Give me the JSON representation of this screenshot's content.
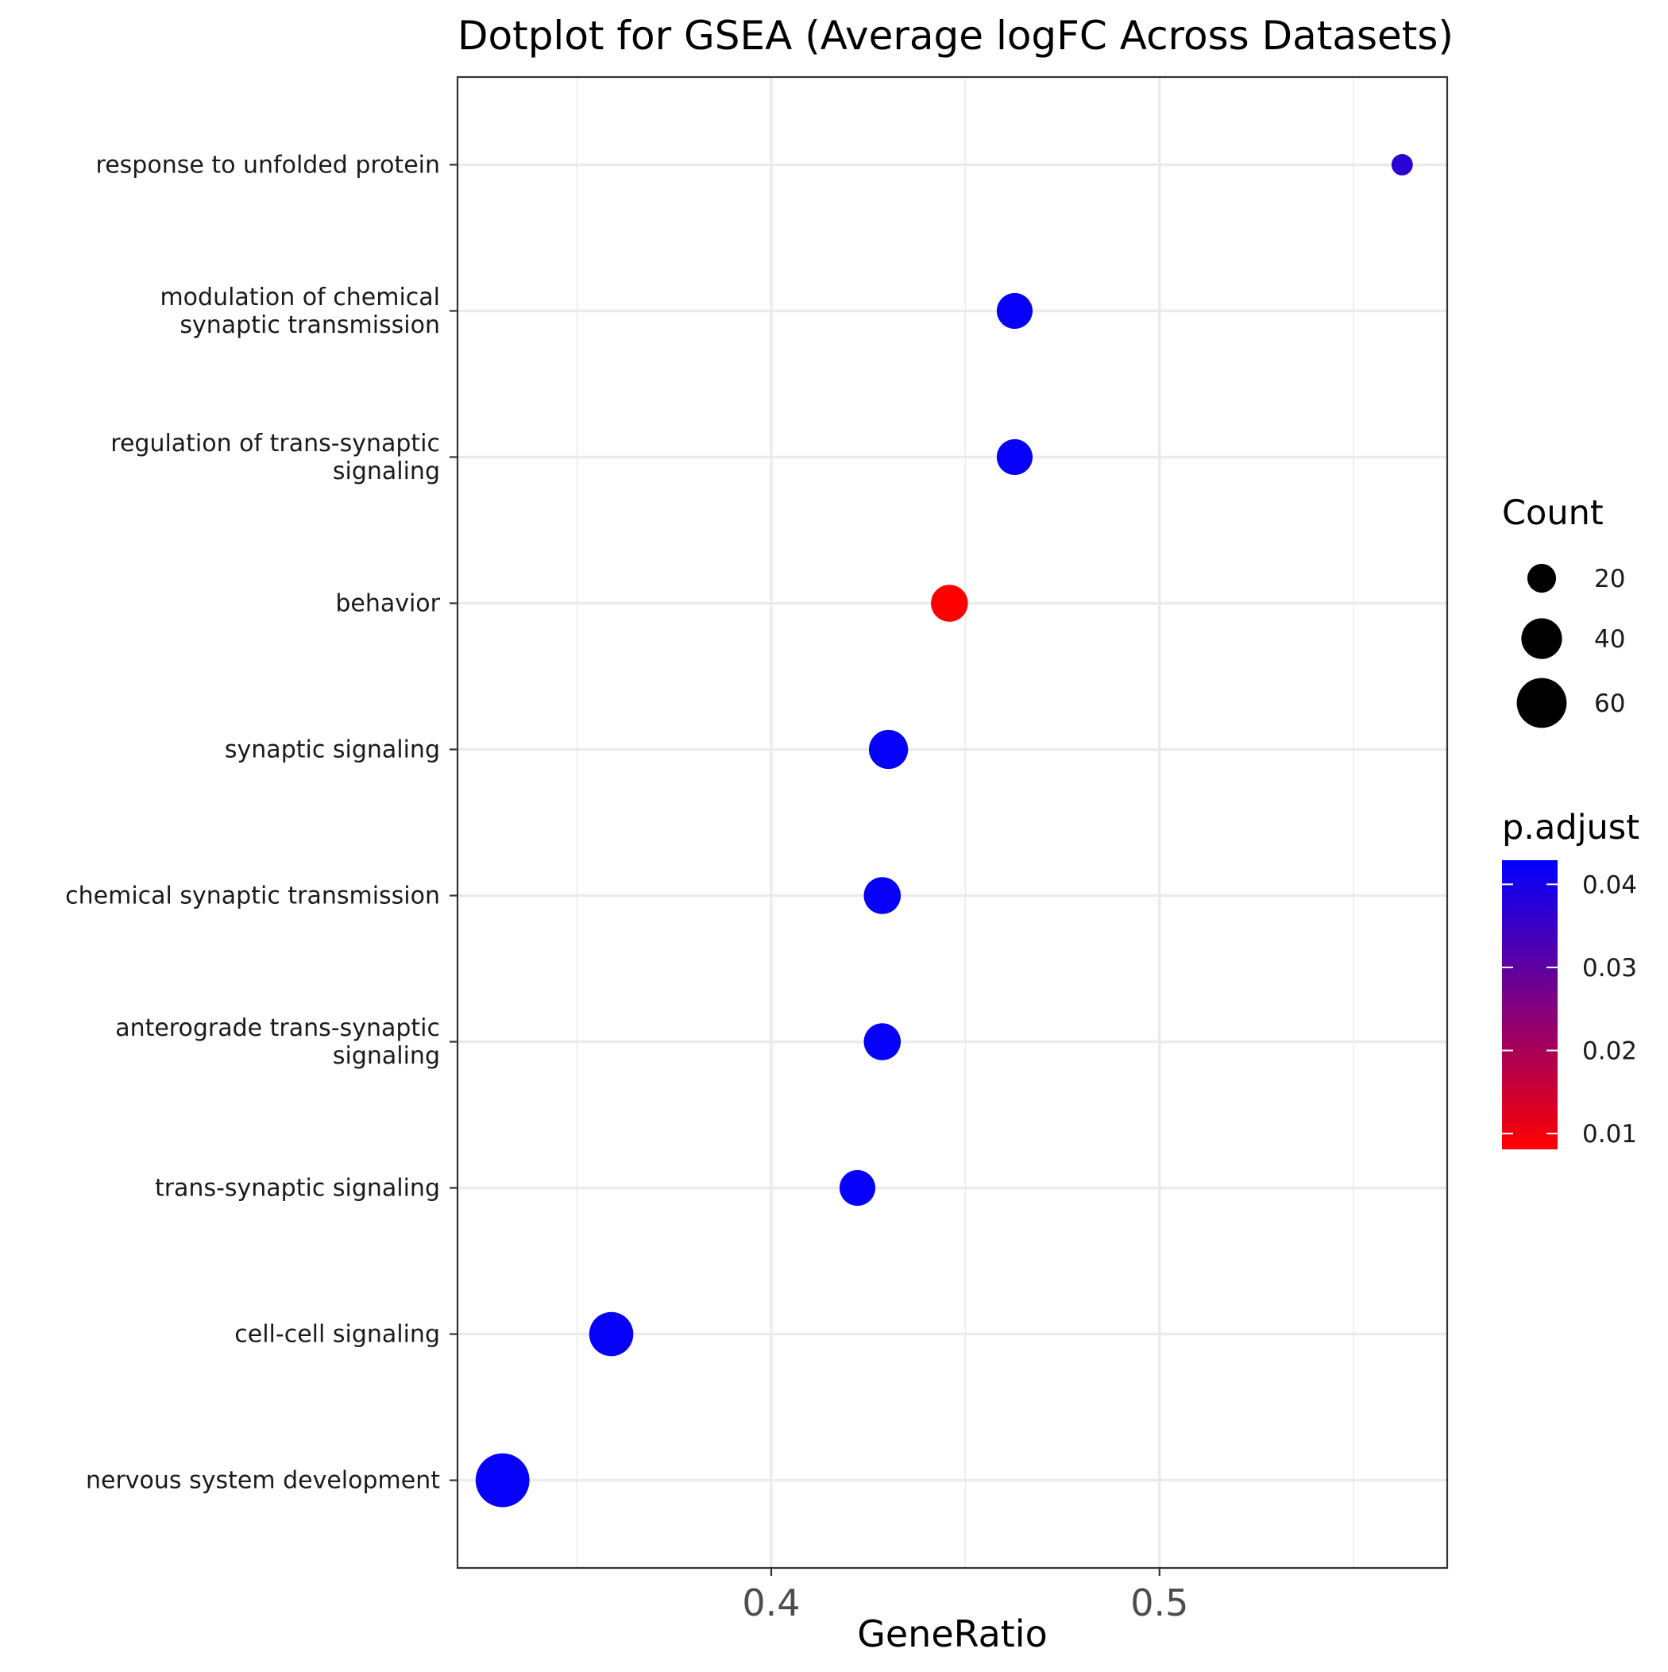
{
  "chart_data": {
    "type": "scatter",
    "title": "Dotplot for GSEA (Average logFC Across Datasets)",
    "xlabel": "GeneRatio",
    "ylabel": "",
    "xlim": [
      0.3192,
      0.5741
    ],
    "x_ticks": [
      0.4,
      0.5
    ],
    "x_tick_labels": [
      "0.4",
      "0.5"
    ],
    "grid": true,
    "categories": [
      "response to unfolded protein",
      "modulation of chemical synaptic transmission",
      "regulation of trans-synaptic signaling",
      "behavior",
      "synaptic signaling",
      "chemical synaptic transmission",
      "anterograde trans-synaptic signaling",
      "trans-synaptic signaling",
      "cell-cell signaling",
      "nervous system development"
    ],
    "category_labels": [
      [
        "response to unfolded protein"
      ],
      [
        "modulation of chemical",
        "synaptic transmission"
      ],
      [
        "regulation of trans-synaptic",
        "signaling"
      ],
      [
        "behavior"
      ],
      [
        "synaptic signaling"
      ],
      [
        "chemical synaptic transmission"
      ],
      [
        "anterograde trans-synaptic",
        "signaling"
      ],
      [
        "trans-synaptic signaling"
      ],
      [
        "cell-cell signaling"
      ],
      [
        "nervous system development"
      ]
    ],
    "points": [
      {
        "term": "response to unfolded protein",
        "gene_ratio": 0.5625,
        "count": 11,
        "p_adjust": 0.037
      },
      {
        "term": "modulation of chemical synaptic transmission",
        "gene_ratio": 0.4627,
        "count": 31,
        "p_adjust": 0.042
      },
      {
        "term": "regulation of trans-synaptic signaling",
        "gene_ratio": 0.4627,
        "count": 31,
        "p_adjust": 0.042
      },
      {
        "term": "behavior",
        "gene_ratio": 0.4459,
        "count": 33,
        "p_adjust": 0.008
      },
      {
        "term": "synaptic signaling",
        "gene_ratio": 0.4302,
        "count": 37,
        "p_adjust": 0.042
      },
      {
        "term": "chemical synaptic transmission",
        "gene_ratio": 0.4286,
        "count": 33,
        "p_adjust": 0.042
      },
      {
        "term": "anterograde trans-synaptic signaling",
        "gene_ratio": 0.4286,
        "count": 33,
        "p_adjust": 0.042
      },
      {
        "term": "trans-synaptic signaling",
        "gene_ratio": 0.4222,
        "count": 31,
        "p_adjust": 0.042
      },
      {
        "term": "cell-cell signaling",
        "gene_ratio": 0.3588,
        "count": 47,
        "p_adjust": 0.042
      },
      {
        "term": "nervous system development",
        "gene_ratio": 0.3308,
        "count": 70,
        "p_adjust": 0.042
      }
    ],
    "size_legend": {
      "title": "Count",
      "values": [
        20,
        40,
        60
      ],
      "labels": [
        "20",
        "40",
        "60"
      ]
    },
    "color_legend": {
      "title": "p.adjust",
      "low_color": "#FF0000",
      "high_color": "#0000FF",
      "range": [
        0.0081,
        0.0429
      ],
      "ticks": [
        0.01,
        0.02,
        0.03,
        0.04
      ],
      "tick_labels": [
        "0.01",
        "0.02",
        "0.03",
        "0.04"
      ]
    }
  }
}
